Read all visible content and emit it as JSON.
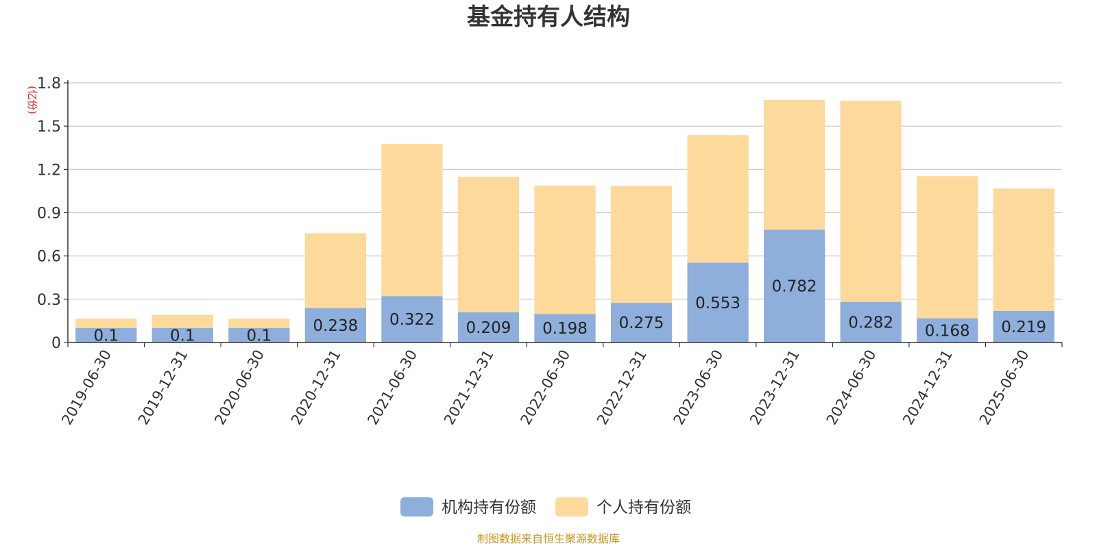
{
  "chart_data": {
    "type": "bar",
    "stacked": true,
    "title": "基金持有人结构",
    "unit_label": "(亿份)",
    "categories": [
      "2019-06-30",
      "2019-12-31",
      "2020-06-30",
      "2020-12-31",
      "2021-06-30",
      "2021-12-31",
      "2022-06-30",
      "2022-12-31",
      "2023-06-30",
      "2023-12-31",
      "2024-06-30",
      "2024-12-31",
      "2025-06-30"
    ],
    "series": [
      {
        "name": "机构持有份额",
        "color": "#8eaedc",
        "values": [
          0.1,
          0.1,
          0.1,
          0.238,
          0.322,
          0.209,
          0.198,
          0.275,
          0.553,
          0.782,
          0.282,
          0.168,
          0.219
        ],
        "labels": [
          "0.1",
          "0.1",
          "0.1",
          "0.238",
          "0.322",
          "0.209",
          "0.198",
          "0.275",
          "0.553",
          "0.782",
          "0.282",
          "0.168",
          "0.219"
        ]
      },
      {
        "name": "个人持有份额",
        "color": "#fdd99c",
        "values": [
          0.065,
          0.09,
          0.065,
          0.52,
          1.055,
          0.94,
          0.89,
          0.81,
          0.885,
          0.9,
          1.395,
          0.985,
          0.848
        ]
      }
    ],
    "ylim": [
      0,
      1.8
    ],
    "yticks": [
      "0",
      "0.3",
      "0.6",
      "0.9",
      "1.2",
      "1.5",
      "1.8"
    ],
    "grid": true,
    "legend_position": "bottom-center"
  },
  "source_note": "制图数据来自恒生聚源数据库"
}
